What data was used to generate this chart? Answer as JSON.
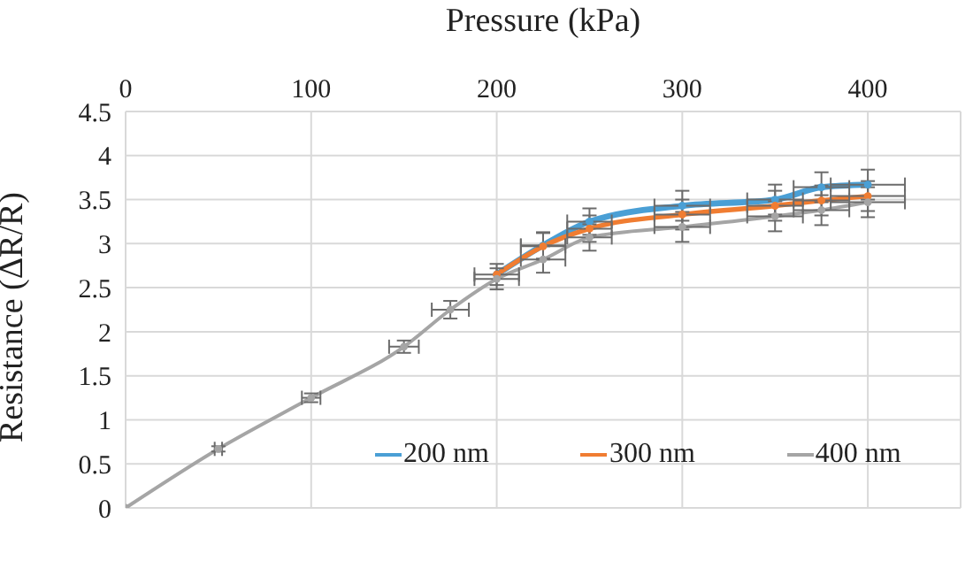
{
  "chart_data": {
    "type": "line",
    "xlabel": "Pressure (kPa)",
    "ylabel": "Resistance (ΔR/R)",
    "x": [
      0,
      50,
      100,
      150,
      175,
      200,
      225,
      250,
      300,
      350,
      375,
      400
    ],
    "series": [
      {
        "name": "200 nm",
        "color": "#4a9fd5",
        "values": [
          null,
          null,
          null,
          null,
          null,
          2.65,
          2.98,
          3.25,
          3.43,
          3.5,
          3.64,
          3.67
        ],
        "errors": [
          null,
          null,
          null,
          null,
          null,
          null,
          0.15,
          0.15,
          0.17,
          0.17,
          0.17,
          0.17
        ],
        "xerrors": [
          null,
          null,
          null,
          null,
          null,
          null,
          12,
          12,
          15,
          15,
          15,
          20
        ]
      },
      {
        "name": "300 nm",
        "color": "#f07d32",
        "values": [
          null,
          null,
          null,
          null,
          null,
          2.65,
          2.97,
          3.17,
          3.33,
          3.43,
          3.49,
          3.54
        ],
        "errors": [
          null,
          null,
          null,
          null,
          null,
          0.12,
          0.15,
          0.15,
          0.17,
          0.17,
          0.17,
          0.17
        ],
        "xerrors": [
          null,
          null,
          null,
          null,
          null,
          12,
          12,
          12,
          15,
          15,
          15,
          20
        ]
      },
      {
        "name": "400 nm",
        "color": "#a5a5a5",
        "values": [
          0,
          0.67,
          1.25,
          1.83,
          2.25,
          2.6,
          2.82,
          3.07,
          3.19,
          3.31,
          3.38,
          3.47
        ],
        "errors": [
          null,
          0.03,
          0.05,
          0.07,
          0.1,
          0.12,
          0.15,
          0.15,
          0.17,
          0.17,
          0.17,
          0.17
        ],
        "xerrors": [
          null,
          2,
          5,
          8,
          10,
          12,
          12,
          12,
          15,
          15,
          15,
          20
        ]
      }
    ],
    "xlim": [
      0,
      450
    ],
    "xticks": [
      0,
      100,
      200,
      300,
      400
    ],
    "ylim": [
      0,
      4.5
    ],
    "yticks": [
      0,
      0.5,
      1,
      1.5,
      2,
      2.5,
      3,
      3.5,
      4,
      4.5
    ],
    "grid": true,
    "legend": "bottom",
    "marker": "circle",
    "line_style": "solid"
  }
}
